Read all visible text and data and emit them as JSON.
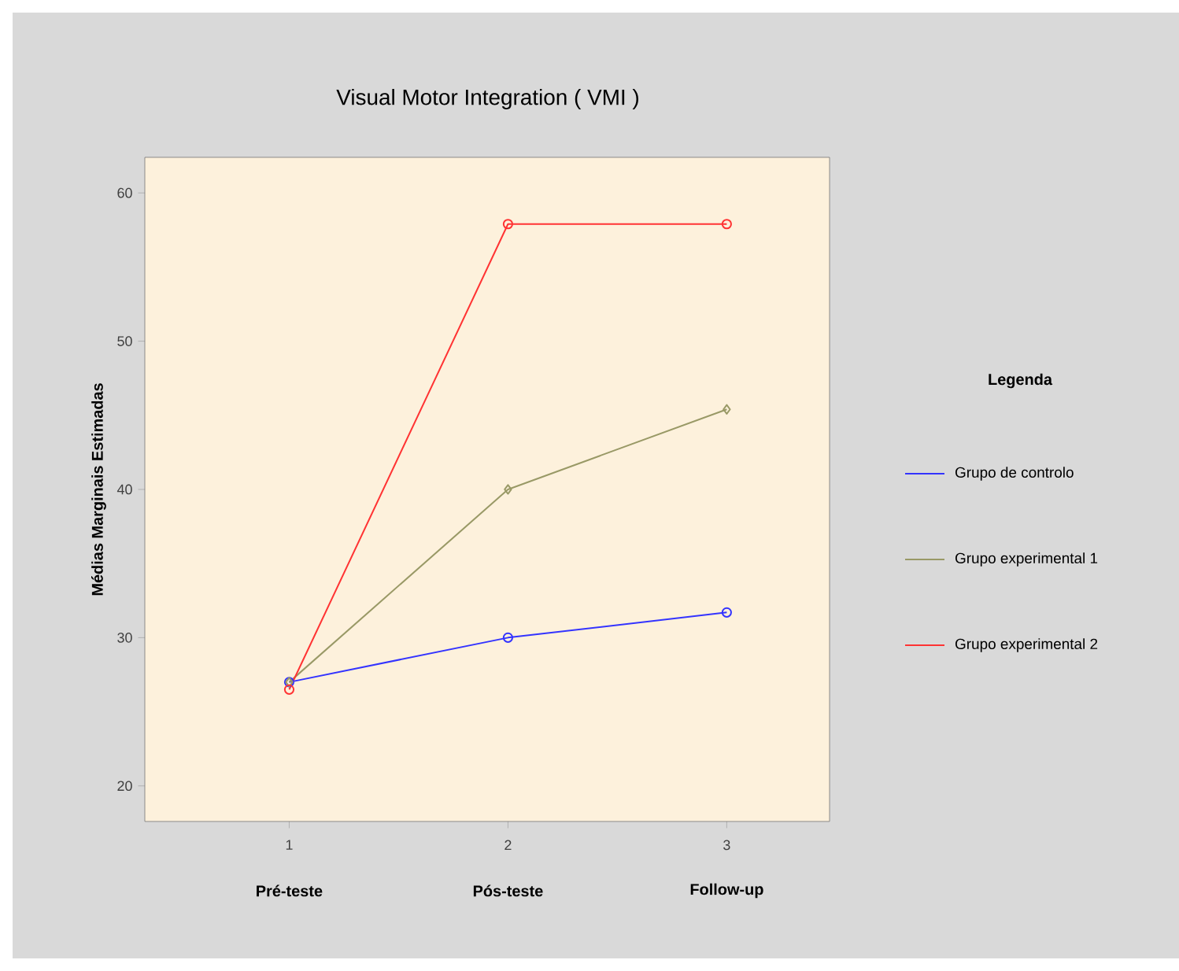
{
  "chart_data": {
    "type": "line",
    "title": "Visual Motor Integration ( VMI )",
    "ylabel": "Médias Marginais Estimadas",
    "legend_title": "Legenda",
    "legend": "right",
    "x": [
      1,
      2,
      3
    ],
    "xlim": [
      0.34,
      3.47
    ],
    "xticks": [
      1,
      2,
      3
    ],
    "ylim": [
      17.6,
      62.4
    ],
    "yticks": [
      20,
      30,
      40,
      50,
      60
    ],
    "grid": false,
    "annotations": [
      "Pré-teste",
      "Pós-teste",
      "Follow-up"
    ],
    "series": [
      {
        "name": "Grupo de controlo",
        "color": "#3333ff",
        "marker": "circle",
        "values": [
          27.0,
          30.0,
          31.7
        ]
      },
      {
        "name": "Grupo experimental 1",
        "color": "#999966",
        "marker": "diamond",
        "values": [
          27.0,
          40.0,
          45.4
        ]
      },
      {
        "name": "Grupo experimental 2",
        "color": "#ff3333",
        "marker": "circle",
        "values": [
          26.5,
          57.9,
          57.9
        ]
      }
    ]
  }
}
